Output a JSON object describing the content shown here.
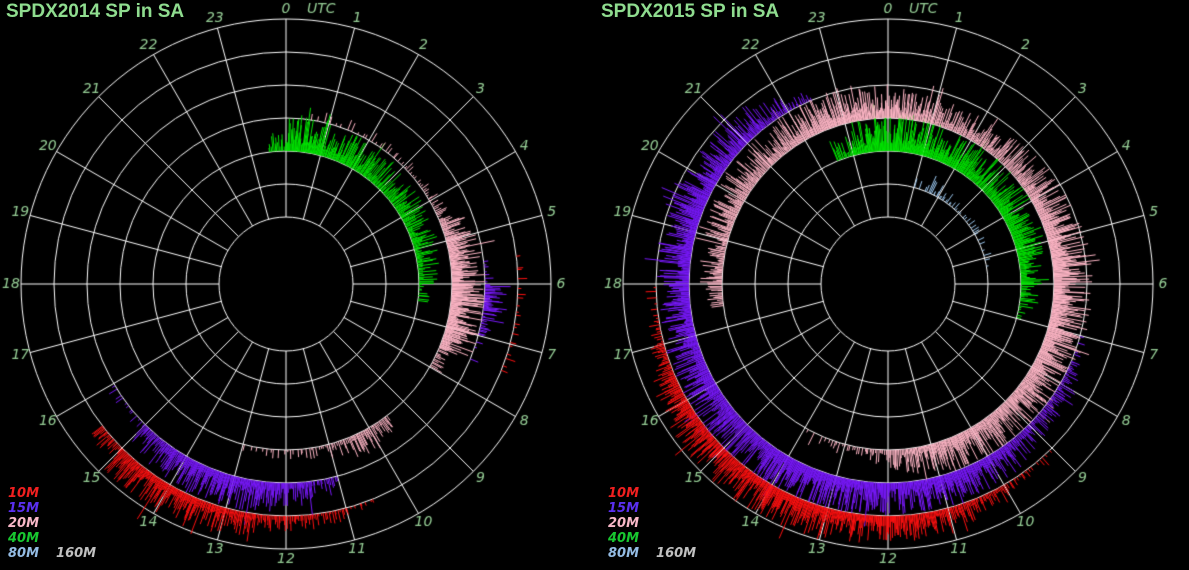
{
  "background": "#000000",
  "colors": {
    "grid": "#FFFFFF",
    "hour_label": "#96CE96",
    "title": "#8FDC8F"
  },
  "polar_axis": {
    "hour_labels": [
      0,
      1,
      2,
      3,
      4,
      5,
      6,
      7,
      8,
      9,
      10,
      11,
      12,
      13,
      14,
      15,
      16,
      17,
      18,
      19,
      20,
      21,
      22,
      23
    ],
    "utc_label": "UTC",
    "direction": "clockwise",
    "zero_position": "top",
    "rings": 7,
    "bands_inside_out": [
      "160M",
      "80M",
      "40M",
      "20M",
      "15M",
      "10M"
    ]
  },
  "legend": {
    "items": [
      {
        "label": "10M",
        "color": "#F02020"
      },
      {
        "label": "15M",
        "color": "#5A30F0"
      },
      {
        "label": "20M",
        "color": "#F8B8C8"
      },
      {
        "label": "40M",
        "color": "#18C830"
      },
      {
        "label": "80M",
        "color": "#94BCE4"
      },
      {
        "label": "160M",
        "color": "#C0C0C0"
      }
    ],
    "rows": [
      [
        0
      ],
      [
        1
      ],
      [
        2
      ],
      [
        3
      ],
      [
        4,
        5
      ]
    ]
  },
  "chart_data": [
    {
      "type": "polar-spike",
      "title": "SPDX2014 SP in SA",
      "angular_unit": "UTC hour, 0-23 clockwise from top",
      "radial_unit": "QSO rate per band ring (inner→outer: 160M,80M,40M,20M,15M,10M)",
      "series": [
        {
          "name": "40M",
          "color": "#00E400",
          "baseline_band": 2,
          "envelope_halfhour_pct": [
            85,
            85,
            75,
            75,
            70,
            70,
            65,
            65,
            60,
            60,
            55,
            45,
            30,
            0,
            0,
            0,
            0,
            0,
            0,
            0,
            0,
            0,
            0,
            0,
            0,
            0,
            0,
            0,
            0,
            0,
            0,
            0,
            0,
            0,
            0,
            0,
            0,
            0,
            0,
            0,
            0,
            0,
            0,
            0,
            0,
            0,
            0,
            45
          ]
        },
        {
          "name": "20M",
          "color": "#FFB6C6",
          "baseline_band": 3,
          "envelope_halfhour_pct": [
            0,
            10,
            12,
            12,
            15,
            15,
            20,
            25,
            30,
            65,
            80,
            85,
            90,
            90,
            85,
            35,
            0,
            0,
            0,
            45,
            55,
            35,
            25,
            18,
            15,
            12,
            0,
            0,
            0,
            0,
            0,
            0,
            0,
            0,
            0,
            0,
            0,
            0,
            0,
            0,
            0,
            0,
            0,
            0,
            0,
            0,
            0,
            0
          ]
        },
        {
          "name": "15M",
          "color": "#7818FA",
          "baseline_band": 4,
          "envelope_halfhour_pct": [
            0,
            0,
            0,
            0,
            0,
            0,
            0,
            0,
            0,
            0,
            0,
            15,
            60,
            35,
            8,
            0,
            0,
            0,
            0,
            0,
            0,
            0,
            30,
            55,
            70,
            75,
            75,
            75,
            70,
            60,
            15,
            12,
            0,
            0,
            0,
            0,
            0,
            0,
            0,
            0,
            0,
            0,
            0,
            0,
            0,
            0,
            0,
            0
          ]
        },
        {
          "name": "10M",
          "color": "#FF1010",
          "baseline_band": 5,
          "envelope_halfhour_pct": [
            0,
            0,
            0,
            0,
            0,
            0,
            0,
            0,
            0,
            0,
            0,
            8,
            10,
            10,
            10,
            0,
            0,
            0,
            0,
            0,
            0,
            15,
            30,
            40,
            45,
            55,
            65,
            75,
            75,
            70,
            40,
            0,
            0,
            0,
            0,
            0,
            0,
            0,
            0,
            0,
            0,
            0,
            0,
            0,
            0,
            0,
            0,
            0
          ]
        }
      ]
    },
    {
      "type": "polar-spike",
      "title": "SPDX2015 SP in SA",
      "angular_unit": "UTC hour, 0-23 clockwise from top",
      "radial_unit": "QSO rate per band ring (inner→outer: 160M,80M,40M,20M,15M,10M)",
      "series": [
        {
          "name": "80M",
          "color": "#9CC8F0",
          "baseline_band": 1,
          "envelope_halfhour_pct": [
            0,
            0,
            15,
            35,
            30,
            25,
            20,
            18,
            15,
            12,
            10,
            0,
            0,
            0,
            0,
            0,
            0,
            0,
            0,
            0,
            0,
            0,
            0,
            0,
            0,
            0,
            0,
            0,
            0,
            0,
            0,
            0,
            0,
            0,
            0,
            0,
            0,
            0,
            0,
            0,
            0,
            0,
            0,
            0,
            0,
            0,
            0,
            0
          ]
        },
        {
          "name": "40M",
          "color": "#00E400",
          "baseline_band": 2,
          "envelope_halfhour_pct": [
            90,
            90,
            85,
            85,
            85,
            80,
            80,
            80,
            75,
            75,
            70,
            60,
            45,
            25,
            0,
            0,
            0,
            0,
            0,
            0,
            0,
            0,
            0,
            0,
            0,
            0,
            0,
            0,
            0,
            0,
            0,
            0,
            0,
            0,
            0,
            0,
            0,
            0,
            0,
            0,
            0,
            0,
            0,
            0,
            0,
            50,
            80,
            85
          ]
        },
        {
          "name": "20M",
          "color": "#FFB6C6",
          "baseline_band": 3,
          "envelope_halfhour_pct": [
            70,
            65,
            60,
            60,
            65,
            65,
            70,
            75,
            80,
            85,
            90,
            90,
            90,
            90,
            90,
            85,
            85,
            85,
            85,
            80,
            80,
            75,
            65,
            55,
            40,
            25,
            20,
            8,
            0,
            0,
            0,
            0,
            0,
            0,
            0,
            45,
            55,
            55,
            60,
            65,
            70,
            70,
            75,
            75,
            80,
            85,
            85,
            75
          ]
        },
        {
          "name": "15M",
          "color": "#7818FA",
          "baseline_band": 4,
          "envelope_halfhour_pct": [
            0,
            0,
            0,
            0,
            0,
            0,
            0,
            0,
            0,
            0,
            0,
            0,
            0,
            0,
            10,
            35,
            45,
            50,
            60,
            70,
            70,
            75,
            75,
            75,
            80,
            85,
            85,
            85,
            85,
            85,
            85,
            80,
            80,
            75,
            75,
            75,
            75,
            80,
            80,
            80,
            75,
            75,
            70,
            50,
            30,
            0,
            0,
            0
          ]
        },
        {
          "name": "10M",
          "color": "#FF1010",
          "baseline_band": 5,
          "envelope_halfhour_pct": [
            0,
            0,
            0,
            0,
            0,
            0,
            0,
            0,
            0,
            0,
            0,
            0,
            0,
            0,
            0,
            0,
            0,
            0,
            12,
            25,
            40,
            50,
            60,
            65,
            70,
            70,
            75,
            80,
            80,
            75,
            75,
            70,
            60,
            45,
            25,
            10,
            0,
            0,
            0,
            0,
            0,
            0,
            0,
            0,
            0,
            0,
            0,
            0
          ]
        }
      ]
    }
  ]
}
